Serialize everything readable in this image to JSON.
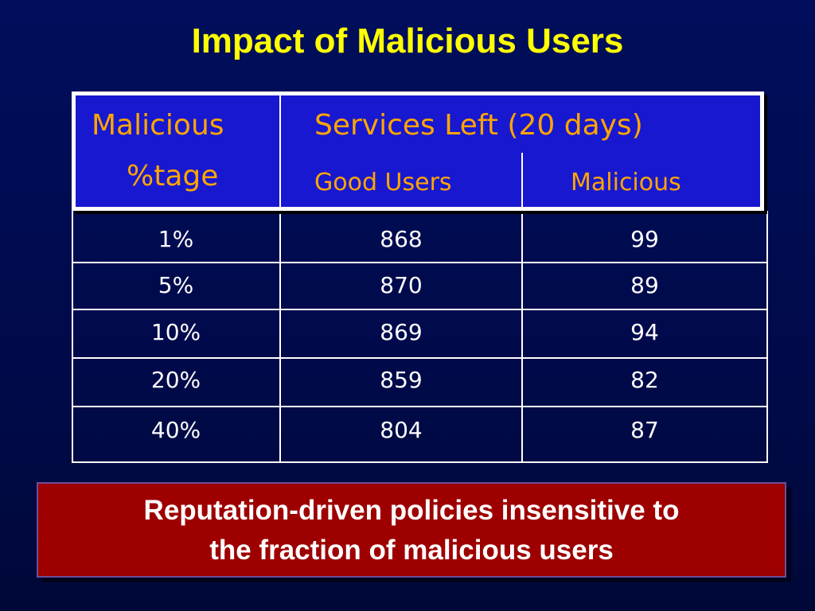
{
  "slide": {
    "title": "Impact of Malicious Users"
  },
  "table": {
    "header": {
      "col1_line1": "Malicious",
      "col1_line2": "%tage",
      "group": "Services Left (20 days)",
      "col2": "Good Users",
      "col3": "Malicious"
    },
    "rows": [
      {
        "pct": "1%",
        "good": "868",
        "malicious": "99"
      },
      {
        "pct": "5%",
        "good": "870",
        "malicious": "89"
      },
      {
        "pct": "10%",
        "good": "869",
        "malicious": "94"
      },
      {
        "pct": "20%",
        "good": "859",
        "malicious": "82"
      },
      {
        "pct": "40%",
        "good": "804",
        "malicious": "87"
      }
    ]
  },
  "callout": {
    "line1": "Reputation-driven policies insensitive to",
    "line2": "the fraction of malicious users"
  },
  "colors": {
    "background": "#000e5c",
    "title": "#ffff00",
    "header_fill": "#1818d0",
    "header_text": "#ffa500",
    "callout_fill": "#9e0000"
  }
}
